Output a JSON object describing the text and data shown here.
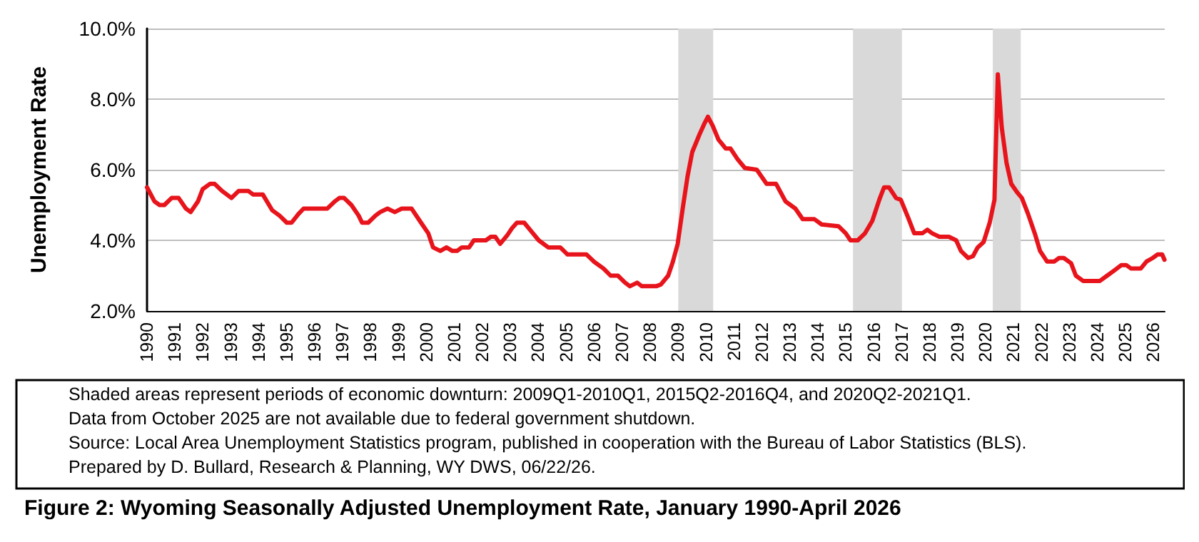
{
  "chart_data": {
    "type": "line",
    "title": "Figure 2: Wyoming Seasonally Adjusted Unemployment Rate, January 1990-April 2026",
    "ylabel": "Unemployment Rate",
    "annotations": [
      "Shaded areas represent periods of economic downturn: 2009Q1-2010Q1, 2015Q2-2016Q4, and 2020Q2-2021Q1.",
      "Data from October 2025 are not available due to federal government shutdown.",
      "Source: Local Area Unemployment Statistics program, published in cooperation with the Bureau of Labor Statistics (BLS).",
      "Prepared by D. Bullard, Research & Planning, WY DWS, 06/22/26."
    ],
    "series": [
      {
        "color": "#e8141c",
        "x": [
          1990.0,
          1990.27,
          1990.45,
          1990.62,
          1990.88,
          1991.13,
          1991.39,
          1991.56,
          1991.82,
          1991.99,
          1992.25,
          1992.42,
          1992.68,
          1992.85,
          1993.02,
          1993.28,
          1993.62,
          1993.79,
          1994.14,
          1994.48,
          1994.74,
          1995.0,
          1995.17,
          1995.42,
          1995.6,
          1996.45,
          1996.71,
          1996.88,
          1997.05,
          1997.31,
          1997.57,
          1997.69,
          1997.91,
          1998.17,
          1998.34,
          1998.6,
          1998.86,
          1999.11,
          1999.46,
          1999.8,
          2000.06,
          2000.23,
          2000.49,
          2000.71,
          2000.92,
          2001.09,
          2001.26,
          2001.52,
          2001.69,
          2002.12,
          2002.29,
          2002.46,
          2002.63,
          2002.89,
          2003.06,
          2003.23,
          2003.49,
          2003.75,
          2004.01,
          2004.35,
          2004.78,
          2005.04,
          2005.72,
          2005.98,
          2006.33,
          2006.58,
          2006.84,
          2007.1,
          2007.27,
          2007.53,
          2007.7,
          2008.21,
          2008.38,
          2008.64,
          2008.81,
          2008.98,
          2009.15,
          2009.33,
          2009.5,
          2009.76,
          2009.93,
          2010.06,
          2010.23,
          2010.44,
          2010.7,
          2010.87,
          2011.12,
          2011.38,
          2011.81,
          2012.16,
          2012.5,
          2012.84,
          2013.19,
          2013.45,
          2013.87,
          2014.13,
          2014.73,
          2014.99,
          2015.16,
          2015.42,
          2015.68,
          2015.94,
          2016.19,
          2016.36,
          2016.54,
          2016.79,
          2016.96,
          2017.22,
          2017.44,
          2017.73,
          2017.91,
          2018.08,
          2018.34,
          2018.68,
          2018.94,
          2019.11,
          2019.37,
          2019.54,
          2019.71,
          2019.92,
          2020.14,
          2020.31,
          2020.43,
          2020.57,
          2020.74,
          2020.91,
          2021.13,
          2021.29,
          2021.51,
          2021.77,
          2021.94,
          2022.19,
          2022.45,
          2022.62,
          2022.79,
          2023.05,
          2023.22,
          2023.48,
          2024.08,
          2024.34,
          2024.6,
          2024.85,
          2025.02,
          2025.2,
          2025.54,
          2025.75,
          2025.97,
          2026.14,
          2026.31,
          2026.39
        ],
        "values": [
          5.5,
          5.1,
          5.0,
          5.0,
          5.2,
          5.2,
          4.9,
          4.8,
          5.1,
          5.45,
          5.6,
          5.6,
          5.4,
          5.3,
          5.2,
          5.4,
          5.4,
          5.3,
          5.3,
          4.85,
          4.7,
          4.5,
          4.5,
          4.75,
          4.9,
          4.9,
          5.1,
          5.2,
          5.2,
          5.0,
          4.7,
          4.5,
          4.5,
          4.7,
          4.8,
          4.9,
          4.8,
          4.9,
          4.9,
          4.5,
          4.2,
          3.8,
          3.7,
          3.8,
          3.7,
          3.7,
          3.8,
          3.8,
          4.0,
          4.0,
          4.1,
          4.1,
          3.9,
          4.15,
          4.35,
          4.5,
          4.5,
          4.25,
          4.0,
          3.8,
          3.8,
          3.6,
          3.6,
          3.4,
          3.2,
          3.0,
          3.0,
          2.8,
          2.7,
          2.8,
          2.7,
          2.7,
          2.75,
          3.0,
          3.4,
          3.9,
          4.85,
          5.8,
          6.5,
          7.0,
          7.3,
          7.5,
          7.25,
          6.85,
          6.6,
          6.6,
          6.3,
          6.05,
          6.0,
          5.6,
          5.6,
          5.1,
          4.9,
          4.6,
          4.6,
          4.45,
          4.4,
          4.2,
          4.0,
          4.0,
          4.2,
          4.55,
          5.15,
          5.5,
          5.5,
          5.2,
          5.15,
          4.65,
          4.2,
          4.2,
          4.3,
          4.2,
          4.1,
          4.1,
          4.0,
          3.7,
          3.5,
          3.55,
          3.8,
          3.95,
          4.5,
          5.15,
          8.7,
          7.2,
          6.2,
          5.6,
          5.35,
          5.2,
          4.75,
          4.15,
          3.7,
          3.4,
          3.4,
          3.5,
          3.5,
          3.35,
          3.0,
          2.85,
          2.85,
          3.0,
          3.15,
          3.3,
          3.3,
          3.2,
          3.2,
          3.4,
          3.5,
          3.6,
          3.6,
          3.45
        ]
      }
    ],
    "bands": [
      {
        "axis": "x",
        "from": 2009.0,
        "to": 2010.25,
        "color": "#d9d9d9"
      },
      {
        "axis": "x",
        "from": 2015.25,
        "to": 2017.0,
        "color": "#d9d9d9"
      },
      {
        "axis": "x",
        "from": 2020.25,
        "to": 2021.25,
        "color": "#d9d9d9"
      }
    ],
    "xlim": [
      1990,
      2026.4
    ],
    "xticks": [
      1990,
      1991,
      1992,
      1993,
      1994,
      1995,
      1996,
      1997,
      1998,
      1999,
      2000,
      2001,
      2002,
      2003,
      2004,
      2005,
      2006,
      2007,
      2008,
      2009,
      2010,
      2011,
      2012,
      2013,
      2014,
      2015,
      2016,
      2017,
      2018,
      2019,
      2020,
      2021,
      2022,
      2023,
      2024,
      2025,
      2026
    ],
    "ylim": [
      2,
      10
    ],
    "yticks": [
      {
        "value": 2,
        "label": "2.0%"
      },
      {
        "value": 4,
        "label": "4.0%"
      },
      {
        "value": 6,
        "label": "6.0%"
      },
      {
        "value": 8,
        "label": "8.0%"
      },
      {
        "value": 10,
        "label": "10.0%"
      }
    ],
    "grid": "y",
    "marker": "none",
    "line_style": "solid"
  }
}
